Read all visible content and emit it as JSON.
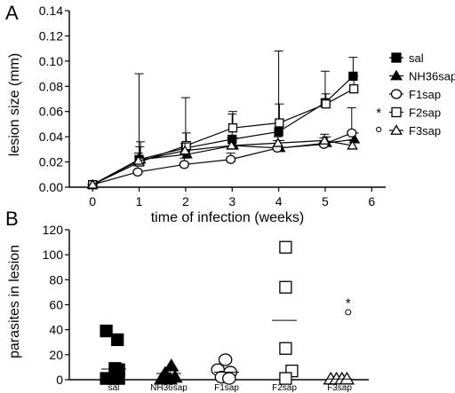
{
  "chart_data": [
    {
      "type": "line",
      "panel_label": "A",
      "xlabel": "time of infection (weeks)",
      "ylabel": "lesion size (mm)",
      "xlim": [
        -0.5,
        6.3
      ],
      "ylim": [
        0,
        0.14
      ],
      "xticks": [
        "0",
        "1",
        "2",
        "3",
        "4",
        "5",
        "6"
      ],
      "yticks": [
        "0.00",
        "0.02",
        "0.04",
        "0.06",
        "0.08",
        "0.10",
        "0.12",
        "0.14"
      ],
      "x": [
        0,
        1,
        2,
        3,
        4,
        5,
        5.6
      ],
      "legend_position": "right",
      "series": [
        {
          "name": "sal",
          "marker": "square-filled",
          "values": [
            0.002,
            0.022,
            0.031,
            0.038,
            0.044,
            0.067,
            0.088
          ],
          "error": [
            0.003,
            0.068,
            0.04,
            0.02,
            0.064,
            0.025,
            0.015
          ]
        },
        {
          "name": "NH36sap",
          "marker": "triangle-filled",
          "values": [
            0.002,
            0.022,
            0.026,
            0.033,
            0.031,
            0.035,
            0.038
          ],
          "error": [
            0.003,
            0.014,
            0.008,
            0.006,
            0.006,
            0.005,
            0.005
          ]
        },
        {
          "name": "F1sap",
          "marker": "circle-open",
          "values": [
            0.002,
            0.012,
            0.018,
            0.022,
            0.031,
            0.034,
            0.043
          ],
          "error": [
            0.003,
            0.005,
            0.005,
            0.005,
            0.006,
            0.005,
            0.02
          ]
        },
        {
          "name": "F2sap",
          "marker": "square-open",
          "values": [
            0.002,
            0.02,
            0.033,
            0.047,
            0.051,
            0.066,
            0.078
          ],
          "error": [
            0.003,
            0.012,
            0.01,
            0.013,
            0.015,
            0.008,
            0.01
          ]
        },
        {
          "name": "F3sap",
          "marker": "triangle-open",
          "values": [
            0.002,
            0.021,
            0.029,
            0.033,
            0.035,
            0.037,
            0.033
          ],
          "error": [
            0.003,
            0.006,
            0.006,
            0.006,
            0.005,
            0.005,
            0.004
          ]
        }
      ],
      "annotation": {
        "text": "*",
        "x": 6.15,
        "y": 0.055,
        "marker_y": 0.05
      }
    },
    {
      "type": "scatter",
      "panel_label": "B",
      "xlabel": "",
      "ylabel": "parasites in lesion",
      "ylim": [
        0,
        120
      ],
      "yticks": [
        "0",
        "20",
        "40",
        "60",
        "80",
        "100",
        "120"
      ],
      "categories": [
        "sal",
        "NH36sap",
        "F1sap",
        "F2sap",
        "F3sap"
      ],
      "markers": [
        "square-filled",
        "triangle-filled",
        "circle-open",
        "square-open",
        "triangle-open"
      ],
      "points": [
        [
          [
            -0.3,
            39
          ],
          [
            0.15,
            32
          ],
          [
            0.05,
            9
          ],
          [
            0.2,
            8
          ],
          [
            -0.3,
            1
          ],
          [
            -0.05,
            1
          ],
          [
            0.2,
            1
          ]
        ],
        [
          [
            -0.15,
            5
          ],
          [
            0.1,
            11
          ],
          [
            0.25,
            2
          ],
          [
            -0.3,
            0.5
          ],
          [
            0.05,
            0.5
          ]
        ],
        [
          [
            -0.35,
            8
          ],
          [
            -0.05,
            16
          ],
          [
            0.15,
            6
          ],
          [
            -0.2,
            2
          ],
          [
            0.1,
            1
          ]
        ],
        [
          [
            0.05,
            106
          ],
          [
            0.05,
            74
          ],
          [
            0.05,
            25
          ],
          [
            0.3,
            7
          ],
          [
            0.05,
            1
          ]
        ],
        [
          [
            -0.35,
            0.5
          ],
          [
            -0.12,
            0.5
          ],
          [
            0.1,
            0.5
          ],
          [
            0.3,
            0.5
          ]
        ]
      ],
      "means": [
        8.5,
        5,
        6,
        47.5,
        0.5
      ],
      "annotation": {
        "text": "*",
        "category_index": 4,
        "x_offset": 0.35,
        "y": 58,
        "marker_y": 54
      }
    }
  ]
}
